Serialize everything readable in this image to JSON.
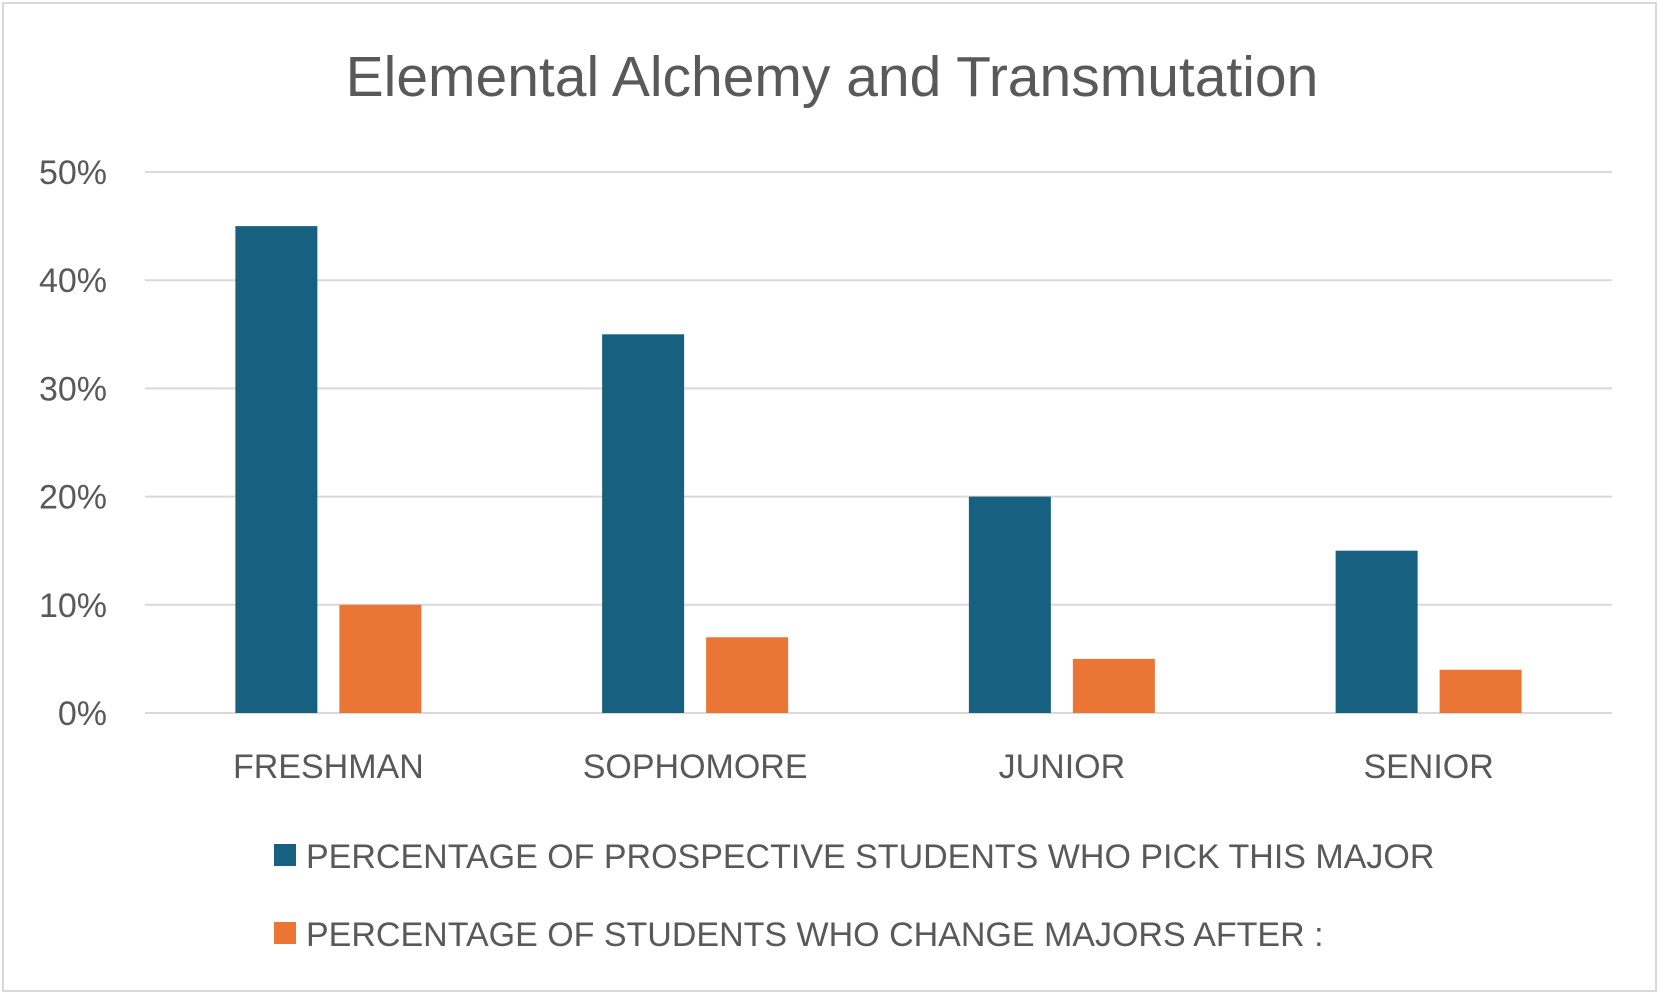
{
  "chart_data": {
    "type": "bar",
    "title": "Elemental Alchemy and Transmutation",
    "categories": [
      "FRESHMAN",
      "SOPHOMORE",
      "JUNIOR",
      "SENIOR"
    ],
    "series": [
      {
        "name": "PERCENTAGE OF PROSPECTIVE STUDENTS WHO PICK THIS MAJOR",
        "color": "#17607f",
        "values": [
          45,
          35,
          20,
          15
        ]
      },
      {
        "name": "PERCENTAGE OF STUDENTS WHO CHANGE MAJORS AFTER :",
        "color": "#ea7535",
        "values": [
          10,
          7,
          5,
          4
        ]
      }
    ],
    "yticks": [
      "0%",
      "10%",
      "20%",
      "30%",
      "40%",
      "50%"
    ],
    "ylim": [
      0,
      50
    ],
    "unit": "%",
    "grid": true,
    "legend_position": "bottom"
  }
}
